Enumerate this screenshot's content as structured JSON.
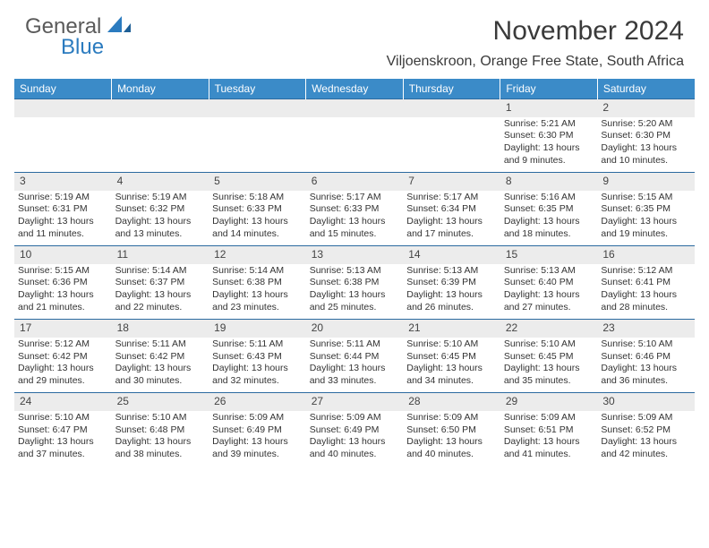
{
  "logo": {
    "text1": "General",
    "text2": "Blue"
  },
  "title": "November 2024",
  "location": "Viljoenskroon, Orange Free State, South Africa",
  "colors": {
    "header_bg": "#3b8bc8",
    "header_text": "#ffffff",
    "daynum_bg": "#ececec",
    "border": "#2b6aa0",
    "logo_gray": "#5a5a5a",
    "logo_blue": "#2b7bbf",
    "text": "#333333"
  },
  "weekdays": [
    "Sunday",
    "Monday",
    "Tuesday",
    "Wednesday",
    "Thursday",
    "Friday",
    "Saturday"
  ],
  "weeks": [
    [
      null,
      null,
      null,
      null,
      null,
      {
        "n": "1",
        "sr": "5:21 AM",
        "ss": "6:30 PM",
        "dl": "13 hours and 9 minutes."
      },
      {
        "n": "2",
        "sr": "5:20 AM",
        "ss": "6:30 PM",
        "dl": "13 hours and 10 minutes."
      }
    ],
    [
      {
        "n": "3",
        "sr": "5:19 AM",
        "ss": "6:31 PM",
        "dl": "13 hours and 11 minutes."
      },
      {
        "n": "4",
        "sr": "5:19 AM",
        "ss": "6:32 PM",
        "dl": "13 hours and 13 minutes."
      },
      {
        "n": "5",
        "sr": "5:18 AM",
        "ss": "6:33 PM",
        "dl": "13 hours and 14 minutes."
      },
      {
        "n": "6",
        "sr": "5:17 AM",
        "ss": "6:33 PM",
        "dl": "13 hours and 15 minutes."
      },
      {
        "n": "7",
        "sr": "5:17 AM",
        "ss": "6:34 PM",
        "dl": "13 hours and 17 minutes."
      },
      {
        "n": "8",
        "sr": "5:16 AM",
        "ss": "6:35 PM",
        "dl": "13 hours and 18 minutes."
      },
      {
        "n": "9",
        "sr": "5:15 AM",
        "ss": "6:35 PM",
        "dl": "13 hours and 19 minutes."
      }
    ],
    [
      {
        "n": "10",
        "sr": "5:15 AM",
        "ss": "6:36 PM",
        "dl": "13 hours and 21 minutes."
      },
      {
        "n": "11",
        "sr": "5:14 AM",
        "ss": "6:37 PM",
        "dl": "13 hours and 22 minutes."
      },
      {
        "n": "12",
        "sr": "5:14 AM",
        "ss": "6:38 PM",
        "dl": "13 hours and 23 minutes."
      },
      {
        "n": "13",
        "sr": "5:13 AM",
        "ss": "6:38 PM",
        "dl": "13 hours and 25 minutes."
      },
      {
        "n": "14",
        "sr": "5:13 AM",
        "ss": "6:39 PM",
        "dl": "13 hours and 26 minutes."
      },
      {
        "n": "15",
        "sr": "5:13 AM",
        "ss": "6:40 PM",
        "dl": "13 hours and 27 minutes."
      },
      {
        "n": "16",
        "sr": "5:12 AM",
        "ss": "6:41 PM",
        "dl": "13 hours and 28 minutes."
      }
    ],
    [
      {
        "n": "17",
        "sr": "5:12 AM",
        "ss": "6:42 PM",
        "dl": "13 hours and 29 minutes."
      },
      {
        "n": "18",
        "sr": "5:11 AM",
        "ss": "6:42 PM",
        "dl": "13 hours and 30 minutes."
      },
      {
        "n": "19",
        "sr": "5:11 AM",
        "ss": "6:43 PM",
        "dl": "13 hours and 32 minutes."
      },
      {
        "n": "20",
        "sr": "5:11 AM",
        "ss": "6:44 PM",
        "dl": "13 hours and 33 minutes."
      },
      {
        "n": "21",
        "sr": "5:10 AM",
        "ss": "6:45 PM",
        "dl": "13 hours and 34 minutes."
      },
      {
        "n": "22",
        "sr": "5:10 AM",
        "ss": "6:45 PM",
        "dl": "13 hours and 35 minutes."
      },
      {
        "n": "23",
        "sr": "5:10 AM",
        "ss": "6:46 PM",
        "dl": "13 hours and 36 minutes."
      }
    ],
    [
      {
        "n": "24",
        "sr": "5:10 AM",
        "ss": "6:47 PM",
        "dl": "13 hours and 37 minutes."
      },
      {
        "n": "25",
        "sr": "5:10 AM",
        "ss": "6:48 PM",
        "dl": "13 hours and 38 minutes."
      },
      {
        "n": "26",
        "sr": "5:09 AM",
        "ss": "6:49 PM",
        "dl": "13 hours and 39 minutes."
      },
      {
        "n": "27",
        "sr": "5:09 AM",
        "ss": "6:49 PM",
        "dl": "13 hours and 40 minutes."
      },
      {
        "n": "28",
        "sr": "5:09 AM",
        "ss": "6:50 PM",
        "dl": "13 hours and 40 minutes."
      },
      {
        "n": "29",
        "sr": "5:09 AM",
        "ss": "6:51 PM",
        "dl": "13 hours and 41 minutes."
      },
      {
        "n": "30",
        "sr": "5:09 AM",
        "ss": "6:52 PM",
        "dl": "13 hours and 42 minutes."
      }
    ]
  ],
  "labels": {
    "sunrise": "Sunrise:",
    "sunset": "Sunset:",
    "daylight": "Daylight:"
  }
}
